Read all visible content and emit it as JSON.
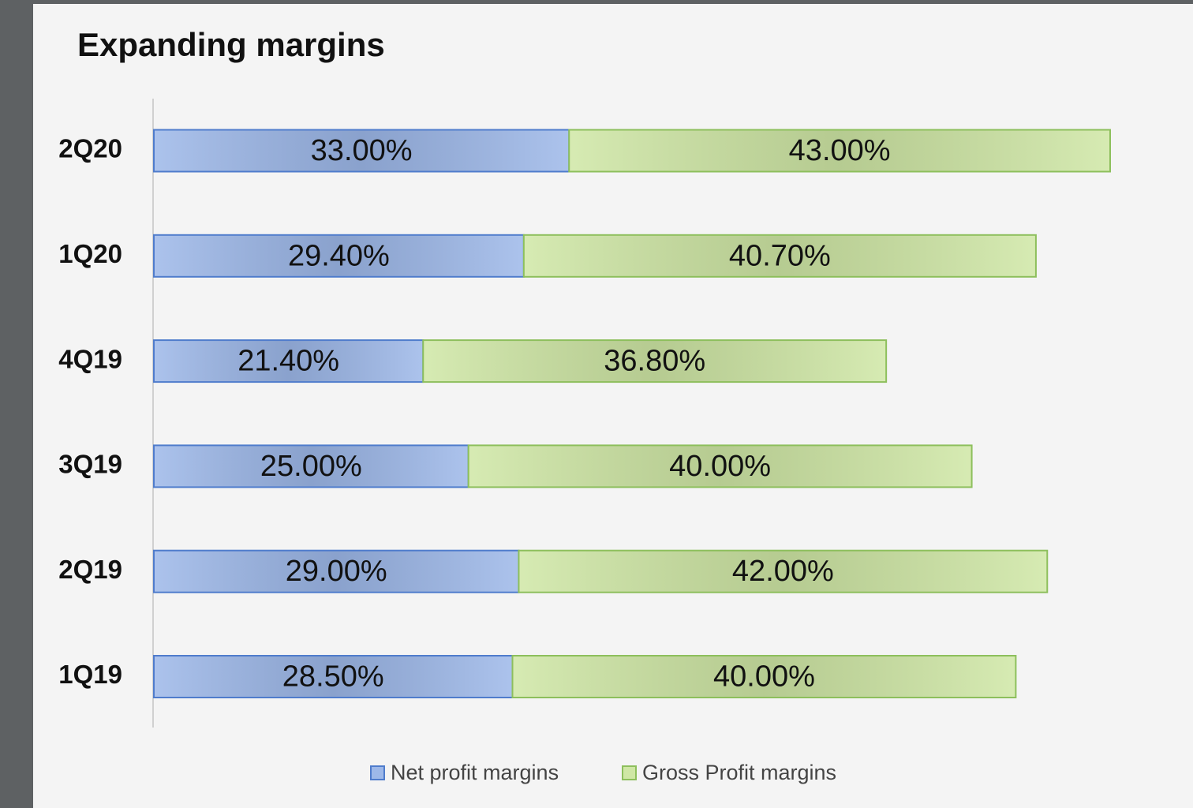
{
  "chart_data": {
    "type": "stacked_bar_horizontal",
    "title": "Expanding margins",
    "categories": [
      "2Q20",
      "1Q20",
      "4Q19",
      "3Q19",
      "2Q19",
      "1Q19"
    ],
    "series": [
      {
        "name": "Net profit margins",
        "color": "#9db8e9",
        "values": [
          33,
          29.4,
          21.4,
          25,
          29,
          28.5
        ],
        "value_labels": [
          "33.00%",
          "29.40%",
          "21.40%",
          "25.00%",
          "29.00%",
          "28.50%"
        ]
      },
      {
        "name": "Gross Profit margins",
        "color": "#cfe7a5",
        "values": [
          43,
          40.7,
          36.8,
          40,
          42,
          40
        ],
        "value_labels": [
          "43.00%",
          "40.70%",
          "36.80%",
          "40.00%",
          "42.00%",
          "40.00%"
        ]
      }
    ],
    "legend": "bottom"
  }
}
